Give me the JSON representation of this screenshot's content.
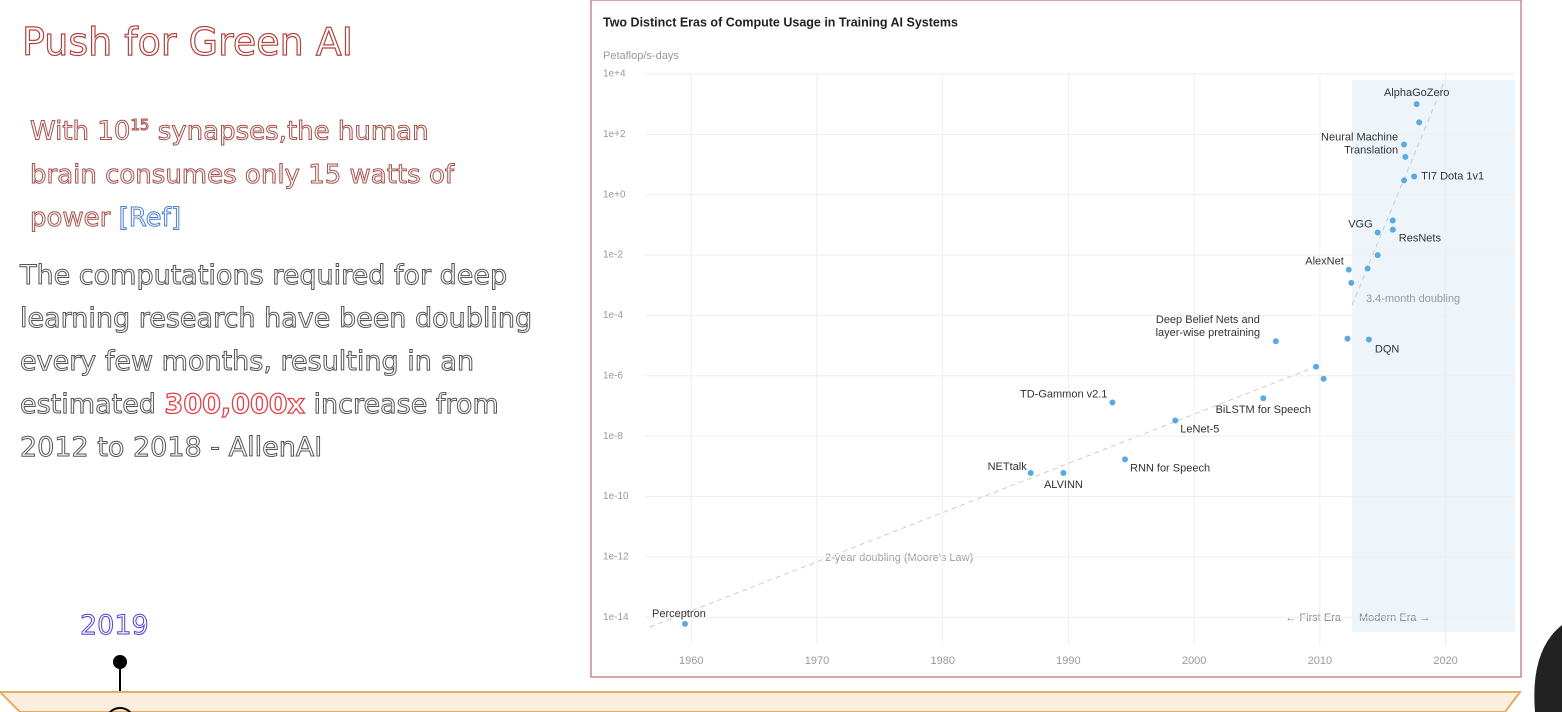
{
  "slide": {
    "title": "Push for Green AI",
    "note": {
      "pre": "With 10",
      "sup": "15",
      "post": " synapses,the human brain consumes only 15 watts of power ",
      "link": "[Ref]"
    },
    "body": {
      "pre": "The computations required for deep learning research have been doubling every few months, resulting in an estimated ",
      "highlight": "300,000x",
      "post": " increase from 2012 to 2018 - AllenAI"
    },
    "timeline_year": "2019"
  },
  "chart_data": {
    "type": "scatter",
    "title": "Two Distinct Eras of Compute Usage in Training AI Systems",
    "y_label": "Petaflop/s-days",
    "log_y": true,
    "grid": true,
    "color": "#5aa9e0",
    "x": [
      1959.5,
      1987,
      1989.6,
      1993.5,
      1994.5,
      1998.5,
      2005.5,
      2006.5,
      2009.7,
      2010.3,
      2012.2,
      2013.9,
      2012.3,
      2012.5,
      2013.8,
      2014.6,
      2014.6,
      2015.8,
      2015.8,
      2016.7,
      2017.5,
      2016.7,
      2016.8,
      2017.9,
      2017.7
    ],
    "values": [
      6e-15,
      6e-10,
      6e-10,
      1.3e-07,
      1.7e-09,
      3.3e-08,
      1.8e-07,
      1.4e-05,
      2e-06,
      8e-07,
      1.7e-05,
      1.6e-05,
      0.0033,
      0.0012,
      0.0036,
      0.01,
      0.056,
      0.07,
      0.14,
      3,
      4,
      46,
      18,
      250,
      1000
    ],
    "labels": [
      "Perceptron",
      "NETtalk",
      "ALVINN",
      "TD-Gammon v2.1",
      "RNN for Speech",
      "LeNet-5",
      "BiLSTM for Speech",
      [
        "Deep Belief Nets and",
        "layer-wise pretraining"
      ],
      null,
      null,
      null,
      "DQN",
      "AlexNet",
      null,
      null,
      null,
      "VGG",
      "ResNets",
      null,
      null,
      "TI7 Dota 1v1",
      [
        "Neural Machine",
        "Translation"
      ],
      null,
      null,
      "AlphaGoZero"
    ],
    "annotations": [
      "2-year doubling (Moore's Law)",
      "3.4-month doubling",
      "← First Era",
      "Modern Era →"
    ],
    "xlim": [
      1956,
      2026
    ],
    "xticks": [
      1960,
      1970,
      1980,
      1990,
      2000,
      2010,
      2020
    ],
    "ylim": [
      3e-15,
      10000
    ],
    "yticks": [
      {
        "value": 10000,
        "label": "1e+4"
      },
      {
        "value": 100,
        "label": "1e+2"
      },
      {
        "value": 1,
        "label": "1e+0"
      },
      {
        "value": 0.01,
        "label": "1e-2"
      },
      {
        "value": 0.0001,
        "label": "1e-4"
      },
      {
        "value": 1e-06,
        "label": "1e-6"
      },
      {
        "value": 1e-08,
        "label": "1e-8"
      },
      {
        "value": 1e-10,
        "label": "1e-10"
      },
      {
        "value": 1e-12,
        "label": "1e-12"
      },
      {
        "value": 1e-14,
        "label": "1e-14"
      }
    ]
  }
}
